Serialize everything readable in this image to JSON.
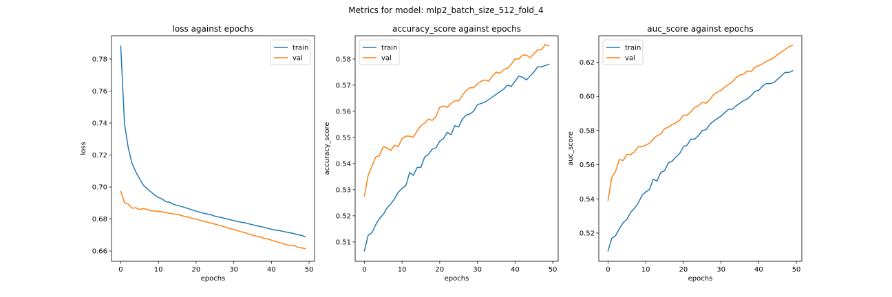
{
  "figure": {
    "title": "Metrics for model: mlp2_batch_size_512_fold_4"
  },
  "colors": {
    "train": "#1f77b4",
    "val": "#ff7f0e"
  },
  "chart_data": [
    {
      "type": "line",
      "title": "loss against epochs",
      "xlabel": "epochs",
      "ylabel": "loss",
      "xlim": [
        -2.45,
        51.45
      ],
      "ylim": [
        0.6536,
        0.7946
      ],
      "xticks": [
        0,
        10,
        20,
        30,
        40,
        50
      ],
      "yticks": [
        0.66,
        0.68,
        0.7,
        0.72,
        0.74,
        0.76,
        0.78
      ],
      "ytick_labels": [
        "0.66",
        "0.68",
        "0.70",
        "0.72",
        "0.74",
        "0.76",
        "0.78"
      ],
      "legend": "upper-right",
      "x": [
        0,
        1,
        2,
        3,
        4,
        5,
        6,
        7,
        8,
        9,
        10,
        11,
        12,
        13,
        14,
        15,
        16,
        17,
        18,
        19,
        20,
        21,
        22,
        23,
        24,
        25,
        26,
        27,
        28,
        29,
        30,
        31,
        32,
        33,
        34,
        35,
        36,
        37,
        38,
        39,
        40,
        41,
        42,
        43,
        44,
        45,
        46,
        47,
        48,
        49
      ],
      "series": [
        {
          "name": "train",
          "values": [
            0.7882,
            0.7398,
            0.7245,
            0.7148,
            0.7095,
            0.7053,
            0.7012,
            0.699,
            0.697,
            0.695,
            0.6935,
            0.6925,
            0.6908,
            0.6905,
            0.6892,
            0.6885,
            0.6879,
            0.6872,
            0.6865,
            0.6857,
            0.6849,
            0.6843,
            0.6836,
            0.6831,
            0.6826,
            0.6818,
            0.6813,
            0.6808,
            0.6802,
            0.6796,
            0.679,
            0.6785,
            0.678,
            0.6776,
            0.677,
            0.6764,
            0.6759,
            0.6753,
            0.6749,
            0.6742,
            0.6736,
            0.6731,
            0.6729,
            0.6723,
            0.6718,
            0.6714,
            0.6709,
            0.6702,
            0.6698,
            0.6688
          ]
        },
        {
          "name": "val",
          "values": [
            0.6974,
            0.6902,
            0.6893,
            0.6868,
            0.687,
            0.686,
            0.6865,
            0.686,
            0.6852,
            0.685,
            0.6848,
            0.6845,
            0.684,
            0.6836,
            0.6831,
            0.683,
            0.6822,
            0.6816,
            0.6812,
            0.6804,
            0.68,
            0.6792,
            0.6786,
            0.678,
            0.6774,
            0.6768,
            0.6762,
            0.6755,
            0.6748,
            0.674,
            0.6735,
            0.6728,
            0.672,
            0.6715,
            0.6706,
            0.67,
            0.6693,
            0.6688,
            0.668,
            0.6675,
            0.6668,
            0.666,
            0.6654,
            0.6647,
            0.664,
            0.6633,
            0.6635,
            0.6623,
            0.662,
            0.6615
          ]
        }
      ]
    },
    {
      "type": "line",
      "title": "accuracy_score against epochs",
      "xlabel": "epochs",
      "ylabel": "accuracy_score",
      "xlim": [
        -2.45,
        51.45
      ],
      "ylim": [
        0.5026,
        0.5889
      ],
      "xticks": [
        0,
        10,
        20,
        30,
        40,
        50
      ],
      "yticks": [
        0.51,
        0.52,
        0.53,
        0.54,
        0.55,
        0.56,
        0.57,
        0.58
      ],
      "ytick_labels": [
        "0.51",
        "0.52",
        "0.53",
        "0.54",
        "0.55",
        "0.56",
        "0.57",
        "0.58"
      ],
      "legend": "upper-left",
      "x": [
        0,
        1,
        2,
        3,
        4,
        5,
        6,
        7,
        8,
        9,
        10,
        11,
        12,
        13,
        14,
        15,
        16,
        17,
        18,
        19,
        20,
        21,
        22,
        23,
        24,
        25,
        26,
        27,
        28,
        29,
        30,
        31,
        32,
        33,
        34,
        35,
        36,
        37,
        38,
        39,
        40,
        41,
        42,
        43,
        44,
        45,
        46,
        47,
        48,
        49
      ],
      "series": [
        {
          "name": "train",
          "values": [
            0.5065,
            0.5125,
            0.5135,
            0.5165,
            0.519,
            0.5205,
            0.523,
            0.5245,
            0.5265,
            0.529,
            0.5305,
            0.5315,
            0.5365,
            0.5355,
            0.5385,
            0.5385,
            0.5425,
            0.5435,
            0.5455,
            0.546,
            0.5485,
            0.5495,
            0.552,
            0.551,
            0.5545,
            0.554,
            0.557,
            0.5585,
            0.559,
            0.56,
            0.5625,
            0.563,
            0.5635,
            0.5645,
            0.5655,
            0.5665,
            0.5675,
            0.5685,
            0.57,
            0.5695,
            0.5715,
            0.5735,
            0.573,
            0.572,
            0.5735,
            0.575,
            0.577,
            0.577,
            0.5775,
            0.578
          ]
        },
        {
          "name": "val",
          "values": [
            0.5275,
            0.5355,
            0.539,
            0.5425,
            0.543,
            0.5465,
            0.546,
            0.545,
            0.547,
            0.5465,
            0.5495,
            0.5505,
            0.5505,
            0.55,
            0.5525,
            0.5545,
            0.5555,
            0.557,
            0.5565,
            0.558,
            0.5615,
            0.562,
            0.5615,
            0.563,
            0.564,
            0.564,
            0.566,
            0.568,
            0.569,
            0.569,
            0.5705,
            0.5715,
            0.572,
            0.5715,
            0.5735,
            0.575,
            0.5745,
            0.576,
            0.5765,
            0.578,
            0.58,
            0.58,
            0.5815,
            0.5815,
            0.5805,
            0.582,
            0.5835,
            0.5835,
            0.5855,
            0.585
          ]
        }
      ]
    },
    {
      "type": "line",
      "title": "auc_score against epochs",
      "xlabel": "epochs",
      "ylabel": "auc_score",
      "xlim": [
        -2.45,
        51.45
      ],
      "ylim": [
        0.5035,
        0.6355
      ],
      "xticks": [
        0,
        10,
        20,
        30,
        40,
        50
      ],
      "yticks": [
        0.52,
        0.54,
        0.56,
        0.58,
        0.6,
        0.62
      ],
      "ytick_labels": [
        "0.52",
        "0.54",
        "0.56",
        "0.58",
        "0.60",
        "0.62"
      ],
      "legend": "upper-left",
      "x": [
        0,
        1,
        2,
        3,
        4,
        5,
        6,
        7,
        8,
        9,
        10,
        11,
        12,
        13,
        14,
        15,
        16,
        17,
        18,
        19,
        20,
        21,
        22,
        23,
        24,
        25,
        26,
        27,
        28,
        29,
        30,
        31,
        32,
        33,
        34,
        35,
        36,
        37,
        38,
        39,
        40,
        41,
        42,
        43,
        44,
        45,
        46,
        47,
        48,
        49
      ],
      "series": [
        {
          "name": "train",
          "values": [
            0.5095,
            0.517,
            0.5185,
            0.5225,
            0.526,
            0.528,
            0.532,
            0.5345,
            0.5375,
            0.542,
            0.544,
            0.5455,
            0.5515,
            0.5505,
            0.5555,
            0.5565,
            0.561,
            0.562,
            0.5645,
            0.5665,
            0.5705,
            0.5715,
            0.575,
            0.575,
            0.577,
            0.58,
            0.5805,
            0.5835,
            0.5855,
            0.587,
            0.5885,
            0.5905,
            0.5925,
            0.5925,
            0.5945,
            0.596,
            0.5975,
            0.5985,
            0.6005,
            0.603,
            0.6035,
            0.606,
            0.6075,
            0.6075,
            0.608,
            0.61,
            0.612,
            0.614,
            0.614,
            0.615
          ]
        },
        {
          "name": "val",
          "values": [
            0.539,
            0.5525,
            0.556,
            0.563,
            0.5625,
            0.566,
            0.566,
            0.5675,
            0.5705,
            0.5705,
            0.5715,
            0.5725,
            0.575,
            0.577,
            0.578,
            0.581,
            0.582,
            0.5835,
            0.5845,
            0.586,
            0.589,
            0.589,
            0.591,
            0.5935,
            0.5945,
            0.5965,
            0.596,
            0.598,
            0.601,
            0.6025,
            0.6035,
            0.6055,
            0.607,
            0.6085,
            0.611,
            0.6125,
            0.613,
            0.615,
            0.6145,
            0.617,
            0.618,
            0.619,
            0.6205,
            0.6215,
            0.6225,
            0.6245,
            0.626,
            0.6275,
            0.629,
            0.63
          ]
        }
      ]
    }
  ]
}
